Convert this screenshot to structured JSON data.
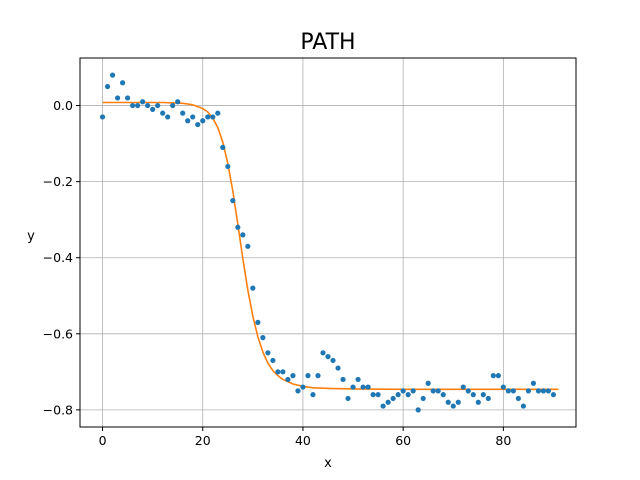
{
  "chart_data": {
    "type": "scatter",
    "title": "PATH",
    "xlabel": "x",
    "ylabel": "y",
    "xlim": [
      -4.5,
      94.5
    ],
    "ylim": [
      -0.845,
      0.125
    ],
    "xticks": [
      0,
      20,
      40,
      60,
      80
    ],
    "yticks": [
      0.0,
      -0.2,
      -0.4,
      -0.6,
      -0.8
    ],
    "xtick_labels": [
      "0",
      "20",
      "40",
      "60",
      "80"
    ],
    "ytick_labels": [
      "0.0",
      "−0.2",
      "−0.4",
      "−0.6",
      "−0.8"
    ],
    "grid": true,
    "colors": {
      "points": "#1f77b4",
      "fit": "#ff7f0e",
      "grid": "#b0b0b0"
    },
    "series": [
      {
        "kind": "points",
        "x": [
          0,
          1,
          2,
          3,
          4,
          5,
          6,
          7,
          8,
          9,
          10,
          11,
          12,
          13,
          14,
          15,
          16,
          17,
          18,
          19,
          20,
          21,
          22,
          23,
          24,
          25,
          26,
          27,
          28,
          29,
          30,
          31,
          32,
          33,
          34,
          35,
          36,
          37,
          38,
          39,
          40,
          41,
          42,
          43,
          44,
          45,
          46,
          47,
          48,
          49,
          50,
          51,
          52,
          53,
          54,
          55,
          56,
          57,
          58,
          59,
          60,
          61,
          62,
          63,
          64,
          65,
          66,
          67,
          68,
          69,
          70,
          71,
          72,
          73,
          74,
          75,
          76,
          77,
          78,
          79,
          80,
          81,
          82,
          83,
          84,
          85,
          86,
          87,
          88,
          89,
          90
        ],
        "y": [
          -0.03,
          0.05,
          0.08,
          0.02,
          0.06,
          0.02,
          0.0,
          0.0,
          0.01,
          0.0,
          -0.01,
          0.0,
          -0.02,
          -0.03,
          0.0,
          0.01,
          -0.02,
          -0.04,
          -0.03,
          -0.05,
          -0.04,
          -0.03,
          -0.03,
          -0.02,
          -0.11,
          -0.16,
          -0.25,
          -0.32,
          -0.34,
          -0.37,
          -0.48,
          -0.57,
          -0.61,
          -0.65,
          -0.67,
          -0.7,
          -0.7,
          -0.72,
          -0.71,
          -0.75,
          -0.74,
          -0.71,
          -0.76,
          -0.71,
          -0.65,
          -0.66,
          -0.67,
          -0.69,
          -0.72,
          -0.77,
          -0.74,
          -0.72,
          -0.74,
          -0.74,
          -0.76,
          -0.76,
          -0.79,
          -0.78,
          -0.77,
          -0.76,
          -0.75,
          -0.76,
          -0.75,
          -0.8,
          -0.77,
          -0.73,
          -0.75,
          -0.75,
          -0.76,
          -0.78,
          -0.79,
          -0.78,
          -0.74,
          -0.75,
          -0.76,
          -0.78,
          -0.76,
          -0.77,
          -0.71,
          -0.71,
          -0.74,
          -0.75,
          -0.75,
          -0.77,
          -0.79,
          -0.75,
          -0.73,
          -0.75,
          -0.75,
          -0.75,
          -0.76
        ]
      },
      {
        "kind": "line",
        "x": [
          0,
          4,
          8,
          12,
          16,
          18,
          20,
          21,
          22,
          23,
          24,
          25,
          26,
          27,
          28,
          29,
          30,
          31,
          32,
          33,
          34,
          35,
          36,
          38,
          40,
          42,
          46,
          50,
          60,
          70,
          80,
          91
        ],
        "y": [
          0.008,
          0.008,
          0.008,
          0.008,
          0.006,
          0.002,
          -0.008,
          -0.017,
          -0.033,
          -0.058,
          -0.096,
          -0.152,
          -0.225,
          -0.312,
          -0.402,
          -0.485,
          -0.554,
          -0.608,
          -0.648,
          -0.677,
          -0.697,
          -0.71,
          -0.72,
          -0.732,
          -0.738,
          -0.742,
          -0.744,
          -0.745,
          -0.746,
          -0.746,
          -0.746,
          -0.746
        ]
      }
    ]
  }
}
